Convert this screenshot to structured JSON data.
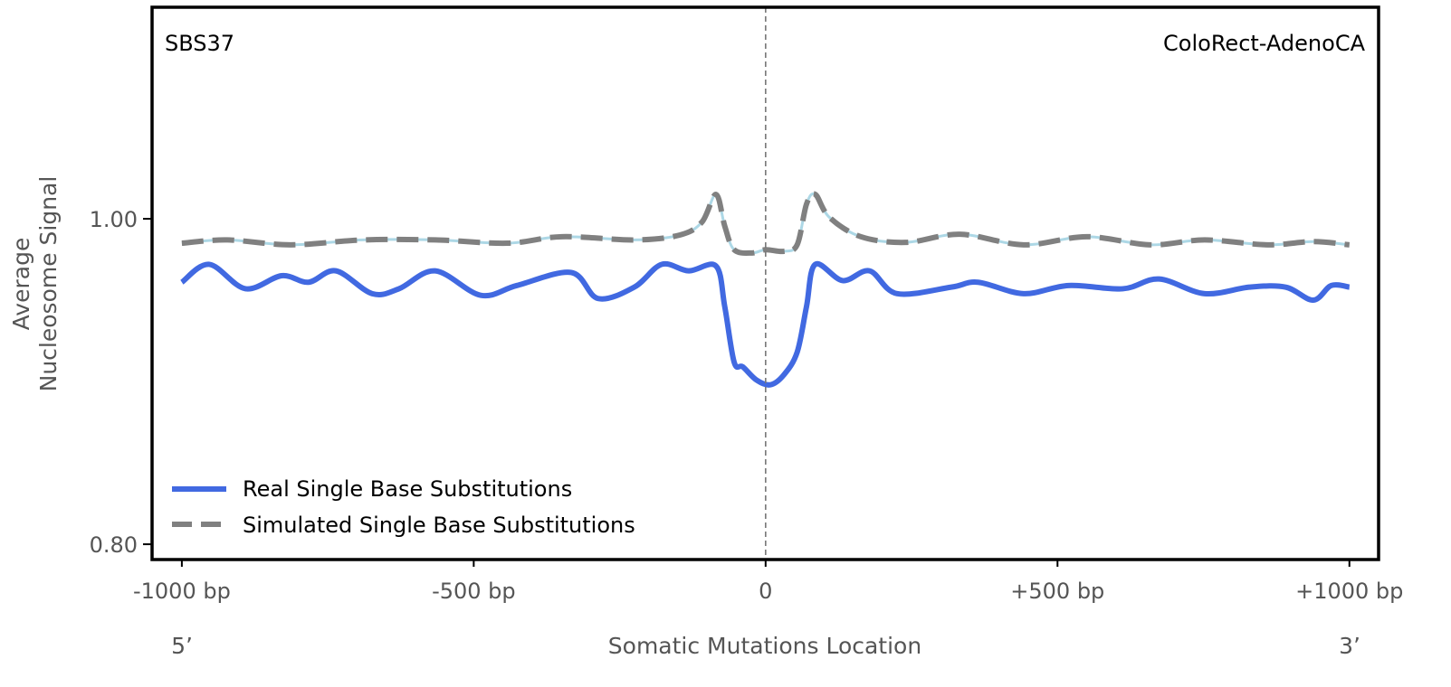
{
  "chart_data": {
    "type": "line",
    "title_left": "SBS37",
    "title_right": "ColoRect-AdenoCA",
    "xlabel": "Somatic Mutations Location",
    "ylabel_line1": "Average",
    "ylabel_line2": "Nucleosome Signal",
    "end_label_left": "5’",
    "end_label_right": "3’",
    "xlim": [
      -1051,
      1050
    ],
    "ylim": [
      0.7906,
      1.13
    ],
    "x_ticks": [
      {
        "value": -1000,
        "label": "-1000 bp"
      },
      {
        "value": -500,
        "label": "-500 bp"
      },
      {
        "value": 0,
        "label": "0"
      },
      {
        "value": 500,
        "label": "+500 bp"
      },
      {
        "value": 1000,
        "label": "+1000 bp"
      }
    ],
    "y_ticks": [
      {
        "value": 1.0,
        "label": "1.00"
      },
      {
        "value": 0.8,
        "label": "0.80"
      }
    ],
    "vertical_reference_line": 0,
    "grid": false,
    "legend_placement": "lower-left",
    "series": [
      {
        "name": "Real Single Base Substitutions",
        "color": "#4169e1",
        "style": "solid",
        "x": [
          -1000,
          -953,
          -891,
          -829,
          -783,
          -736,
          -674,
          -628,
          -566,
          -488,
          -426,
          -333,
          -287,
          -225,
          -178,
          -132,
          -85,
          -70,
          -54,
          -39,
          -16,
          8,
          31,
          54,
          70,
          85,
          132,
          178,
          225,
          318,
          364,
          442,
          519,
          612,
          674,
          752,
          829,
          891,
          938,
          969,
          1000
        ],
        "y": [
          0.961,
          0.972,
          0.957,
          0.965,
          0.961,
          0.968,
          0.954,
          0.957,
          0.968,
          0.953,
          0.959,
          0.967,
          0.951,
          0.958,
          0.972,
          0.968,
          0.971,
          0.946,
          0.912,
          0.909,
          0.901,
          0.898,
          0.904,
          0.918,
          0.946,
          0.972,
          0.962,
          0.968,
          0.954,
          0.958,
          0.961,
          0.954,
          0.959,
          0.957,
          0.963,
          0.954,
          0.958,
          0.958,
          0.95,
          0.959,
          0.958
        ]
      },
      {
        "name": "Simulated Single Base Substitutions",
        "color": "#808080",
        "underlay_color": "#add8e6",
        "style": "dashed",
        "x": [
          -1000,
          -922,
          -814,
          -690,
          -566,
          -442,
          -349,
          -225,
          -147,
          -109,
          -85,
          -70,
          -54,
          -23,
          0,
          31,
          54,
          70,
          85,
          109,
          163,
          240,
          333,
          442,
          550,
          659,
          752,
          860,
          938,
          1000
        ],
        "y": [
          0.985,
          0.987,
          0.984,
          0.987,
          0.987,
          0.985,
          0.989,
          0.987,
          0.99,
          0.998,
          1.015,
          0.9955,
          0.981,
          0.979,
          0.981,
          0.98,
          0.984,
          1.009,
          1.015,
          1.001,
          0.989,
          0.9855,
          0.9905,
          0.984,
          0.989,
          0.984,
          0.987,
          0.984,
          0.986,
          0.984
        ]
      }
    ]
  }
}
